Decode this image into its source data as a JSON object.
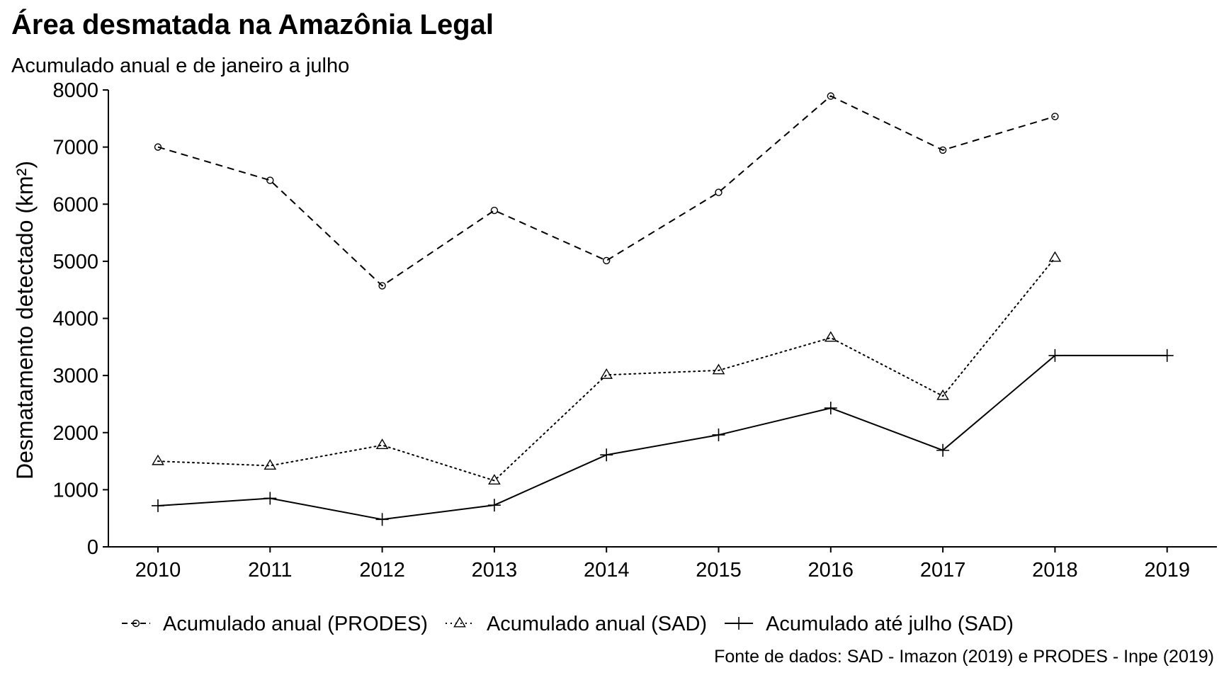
{
  "chart_data": {
    "type": "line",
    "title": "Área desmatada na Amazônia Legal",
    "subtitle": "Acumulado anual e de janeiro a julho",
    "xlabel": "",
    "ylabel": "Desmatamento detectado (km²)",
    "caption": "Fonte de dados: SAD - Imazon (2019) e PRODES - Inpe (2019)",
    "x": [
      "2010",
      "2011",
      "2012",
      "2013",
      "2014",
      "2015",
      "2016",
      "2017",
      "2018",
      "2019"
    ],
    "ylim": [
      0,
      8000
    ],
    "yticks": [
      "0",
      "1000",
      "2000",
      "3000",
      "4000",
      "5000",
      "6000",
      "7000",
      "8000"
    ],
    "grid": false,
    "legend_position": "bottom",
    "series": [
      {
        "name": "Acumulado anual (PRODES)",
        "line": "dashed",
        "marker": "circle",
        "values": [
          7000,
          6418,
          4571,
          5891,
          5012,
          6207,
          7893,
          6947,
          7536,
          null
        ]
      },
      {
        "name": "Acumulado anual (SAD)",
        "line": "dotted",
        "marker": "triangle",
        "values": [
          1500,
          1420,
          1780,
          1160,
          3010,
          3090,
          3660,
          2640,
          5060,
          null
        ]
      },
      {
        "name": "Acumulado até julho (SAD)",
        "line": "solid",
        "marker": "plus",
        "values": [
          720,
          850,
          480,
          730,
          1610,
          1960,
          2430,
          1690,
          3350,
          3350
        ]
      }
    ]
  }
}
